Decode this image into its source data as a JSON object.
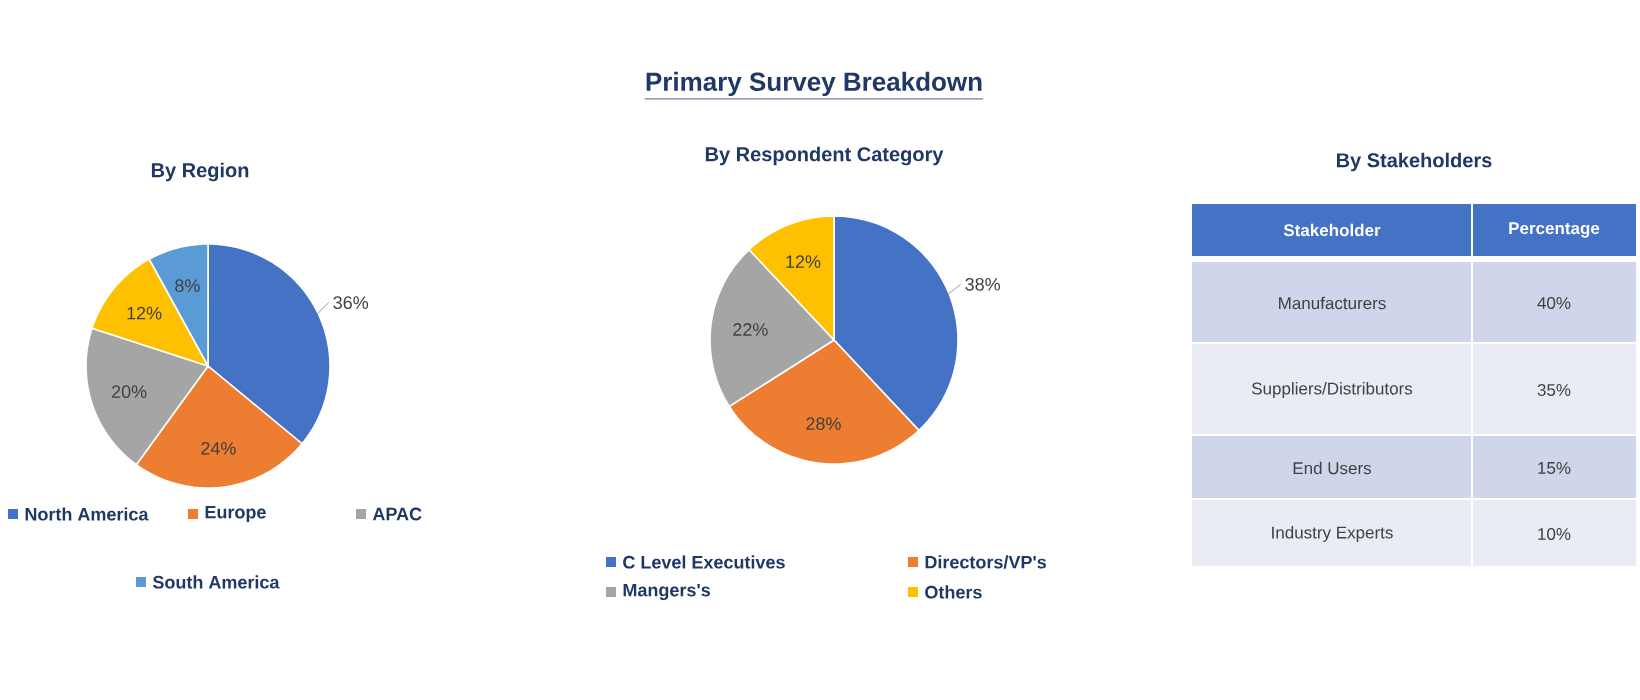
{
  "chart_data": [
    {
      "type": "pie",
      "title": "By Region",
      "categories": [
        "North America",
        "Europe",
        "APAC",
        null,
        "South America"
      ],
      "values": [
        36,
        24,
        20,
        12,
        8
      ],
      "colors": [
        "#4472c4",
        "#ed7d31",
        "#a5a5a5",
        "#ffc000",
        "#5b9bd5"
      ],
      "value_labels": [
        "36%",
        "24%",
        "20%",
        "12%",
        "8%"
      ],
      "legend": "bottom"
    },
    {
      "type": "pie",
      "title": "Primary Survey Breakdown",
      "subtitle": "By Respondent Category",
      "categories": [
        "C Level Executives",
        "Directors/VP's",
        "Mangers's",
        "Others"
      ],
      "values": [
        38,
        28,
        22,
        12
      ],
      "colors": [
        "#4472c4",
        "#ed7d31",
        "#a5a5a5",
        "#ffc000"
      ],
      "value_labels": [
        "38%",
        "28%",
        "22%",
        "12%"
      ],
      "legend": "bottom"
    },
    {
      "type": "other",
      "title": "By Stakeholders",
      "annotations": [
        "Stakeholder",
        "Percentage"
      ],
      "categories": [
        "Manufacturers",
        "Suppliers/Distributors",
        "End Users",
        "Industry Experts"
      ],
      "values": [
        40,
        35,
        15,
        10
      ],
      "value_labels": [
        "40%",
        "35%",
        "15%",
        "10%"
      ]
    }
  ]
}
